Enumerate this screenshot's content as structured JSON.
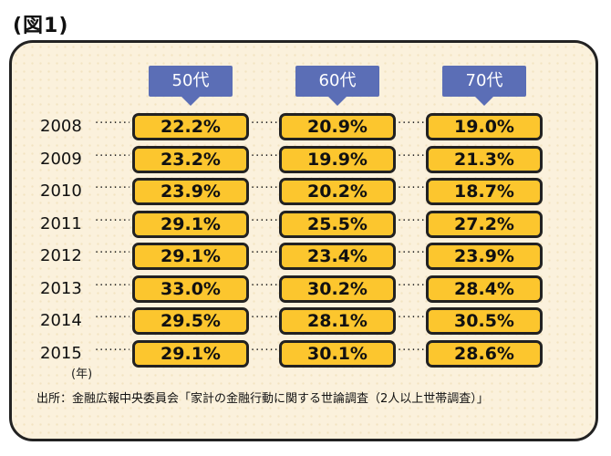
{
  "figure_label": "(図1)",
  "chart_data": {
    "type": "table",
    "categories": [
      "50代",
      "60代",
      "70代"
    ],
    "x": [
      "2008",
      "2009",
      "2010",
      "2011",
      "2012",
      "2013",
      "2014",
      "2015"
    ],
    "x_unit": "(年)",
    "series": [
      {
        "name": "50代",
        "values": [
          "22.2%",
          "23.2%",
          "23.9%",
          "29.1%",
          "29.1%",
          "33.0%",
          "29.5%",
          "29.1%"
        ]
      },
      {
        "name": "60代",
        "values": [
          "20.9%",
          "19.9%",
          "20.2%",
          "25.5%",
          "23.4%",
          "30.2%",
          "28.1%",
          "30.1%"
        ]
      },
      {
        "name": "70代",
        "values": [
          "19.0%",
          "21.3%",
          "18.7%",
          "27.2%",
          "23.9%",
          "28.4%",
          "30.5%",
          "28.6%"
        ]
      }
    ],
    "source": "出所：金融広報中央委員会「家計の金融行動に関する世論調査（2人以上世帯調査）」"
  },
  "colors": {
    "header": "#5b6eb6",
    "cell": "#fcc62e",
    "panel": "#fbf1dc"
  }
}
